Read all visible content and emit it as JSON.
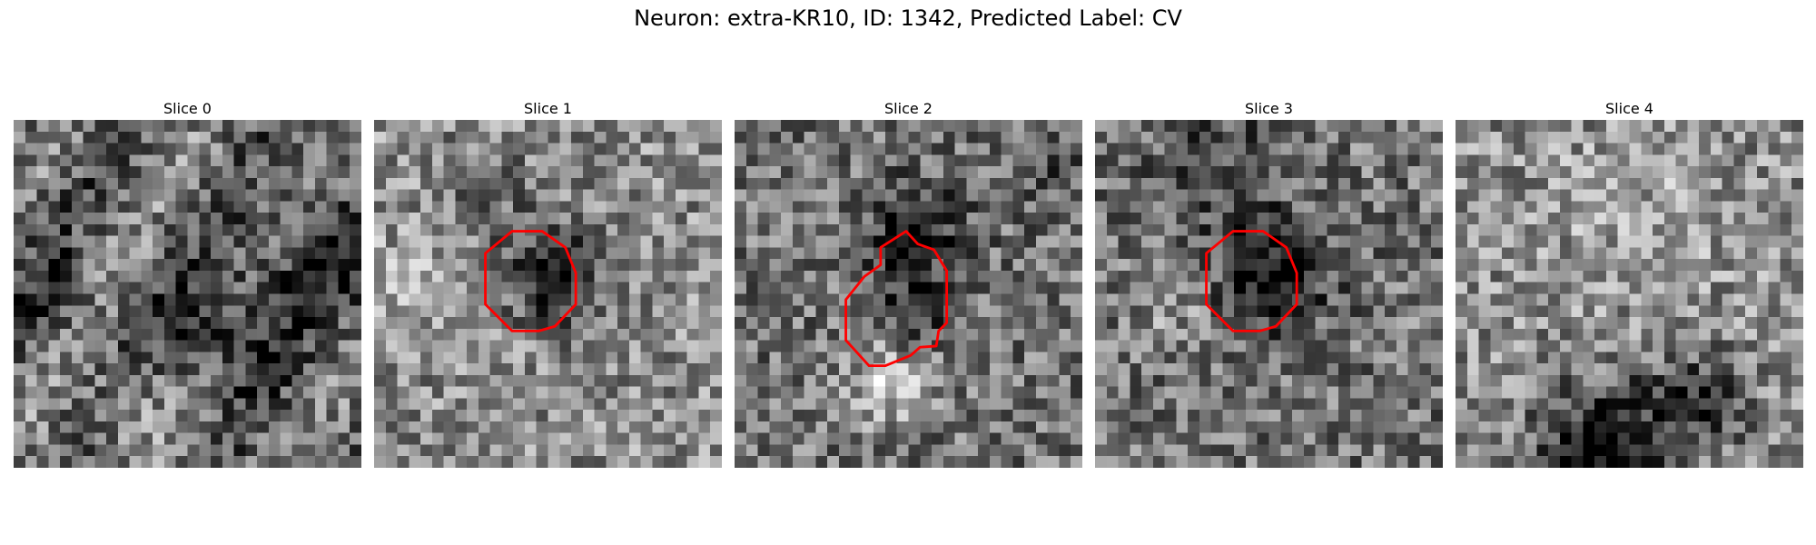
{
  "figure": {
    "title": "Neuron: extra-KR10, ID: 1342, Predicted Label: CV"
  },
  "slices": [
    {
      "title": "Slice 0",
      "mean": 0.42,
      "roi": null
    },
    {
      "title": "Slice 1",
      "mean": 0.55,
      "roi": "octagon"
    },
    {
      "title": "Slice 2",
      "mean": 0.45,
      "roi": "irregular"
    },
    {
      "title": "Slice 3",
      "mean": 0.45,
      "roi": "octagon"
    },
    {
      "title": "Slice 4",
      "mean": 0.55,
      "roi": null
    }
  ],
  "colors": {
    "roi_outline": "#ff0000",
    "colormap": "gray"
  }
}
